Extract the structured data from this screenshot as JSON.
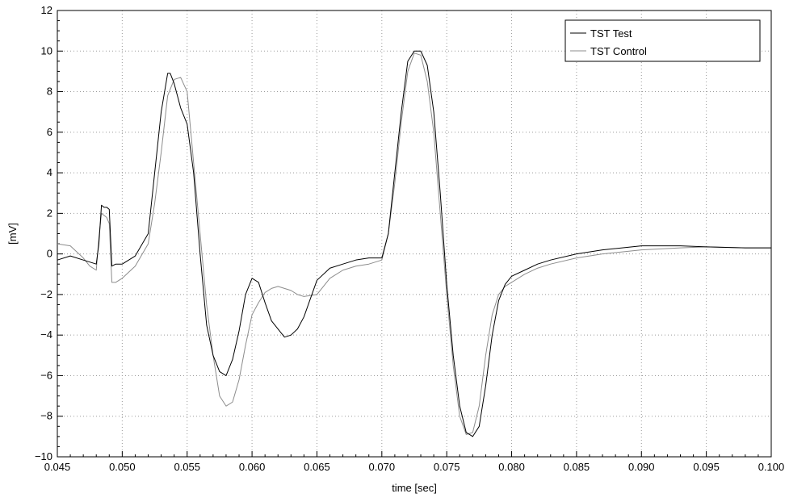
{
  "chart_data": {
    "type": "line",
    "title": "",
    "xlabel": "time [sec]",
    "ylabel": "[mV]",
    "xlim": [
      0.045,
      0.1
    ],
    "ylim": [
      -10,
      12
    ],
    "xticks": [
      0.045,
      0.05,
      0.055,
      0.06,
      0.065,
      0.07,
      0.075,
      0.08,
      0.085,
      0.09,
      0.095,
      0.1
    ],
    "xtick_labels": [
      "0.045",
      "0.050",
      "0.055",
      "0.060",
      "0.065",
      "0.070",
      "0.075",
      "0.080",
      "0.085",
      "0.090",
      "0.095",
      "0.100"
    ],
    "yticks": [
      -10,
      -8,
      -6,
      -4,
      -2,
      0,
      2,
      4,
      6,
      8,
      10,
      12
    ],
    "ytick_labels": [
      "−10",
      "−8",
      "−6",
      "−4",
      "−2",
      "0",
      "2",
      "4",
      "6",
      "8",
      "10",
      "12"
    ],
    "grid": true,
    "legend_position": "top-right",
    "series": [
      {
        "name": "TST Test",
        "color": "#000000",
        "x": [
          0.045,
          0.046,
          0.047,
          0.0475,
          0.048,
          0.0482,
          0.0484,
          0.0486,
          0.0488,
          0.049,
          0.0492,
          0.0495,
          0.05,
          0.051,
          0.052,
          0.0525,
          0.053,
          0.0535,
          0.0537,
          0.054,
          0.0545,
          0.055,
          0.0555,
          0.056,
          0.0565,
          0.057,
          0.0575,
          0.058,
          0.0585,
          0.059,
          0.0595,
          0.06,
          0.0605,
          0.061,
          0.0615,
          0.062,
          0.0625,
          0.063,
          0.0635,
          0.064,
          0.065,
          0.066,
          0.067,
          0.068,
          0.069,
          0.07,
          0.0705,
          0.071,
          0.0715,
          0.072,
          0.0725,
          0.073,
          0.0735,
          0.074,
          0.0745,
          0.075,
          0.0755,
          0.076,
          0.0765,
          0.077,
          0.0775,
          0.078,
          0.0785,
          0.079,
          0.0795,
          0.08,
          0.081,
          0.082,
          0.083,
          0.085,
          0.087,
          0.09,
          0.093,
          0.095,
          0.098,
          0.1
        ],
        "y": [
          -0.3,
          -0.1,
          -0.3,
          -0.4,
          -0.5,
          0.5,
          2.4,
          2.3,
          2.3,
          2.2,
          -0.6,
          -0.5,
          -0.5,
          -0.1,
          1.0,
          4.0,
          7.0,
          8.9,
          8.9,
          8.4,
          7.2,
          6.4,
          4.0,
          0.0,
          -3.5,
          -5.0,
          -5.8,
          -6.0,
          -5.2,
          -3.8,
          -2.0,
          -1.2,
          -1.4,
          -2.4,
          -3.3,
          -3.7,
          -4.1,
          -4.0,
          -3.7,
          -3.1,
          -1.3,
          -0.7,
          -0.5,
          -0.3,
          -0.2,
          -0.2,
          1.0,
          4.0,
          7.0,
          9.5,
          10.0,
          10.0,
          9.3,
          7.0,
          3.0,
          -1.5,
          -5.0,
          -7.5,
          -8.8,
          -9.0,
          -8.5,
          -6.5,
          -4.0,
          -2.3,
          -1.5,
          -1.1,
          -0.8,
          -0.5,
          -0.3,
          0.0,
          0.2,
          0.4,
          0.4,
          0.35,
          0.3,
          0.3
        ]
      },
      {
        "name": "TST Control",
        "color": "#8c8c8c",
        "x": [
          0.045,
          0.046,
          0.047,
          0.0475,
          0.048,
          0.0482,
          0.0484,
          0.0486,
          0.0488,
          0.049,
          0.0492,
          0.0495,
          0.05,
          0.051,
          0.052,
          0.0525,
          0.053,
          0.0535,
          0.054,
          0.0545,
          0.055,
          0.0555,
          0.056,
          0.0565,
          0.057,
          0.0575,
          0.058,
          0.0585,
          0.059,
          0.0595,
          0.06,
          0.0605,
          0.061,
          0.0615,
          0.062,
          0.0625,
          0.063,
          0.0635,
          0.064,
          0.065,
          0.066,
          0.067,
          0.068,
          0.069,
          0.07,
          0.0705,
          0.071,
          0.0715,
          0.072,
          0.0725,
          0.073,
          0.0735,
          0.074,
          0.0745,
          0.075,
          0.0755,
          0.076,
          0.0765,
          0.077,
          0.0775,
          0.078,
          0.0785,
          0.079,
          0.0795,
          0.08,
          0.081,
          0.082,
          0.083,
          0.085,
          0.087,
          0.09,
          0.093,
          0.095,
          0.098,
          0.1
        ],
        "y": [
          0.5,
          0.4,
          -0.2,
          -0.6,
          -0.8,
          0.8,
          2.0,
          1.9,
          1.8,
          1.5,
          -1.4,
          -1.4,
          -1.2,
          -0.6,
          0.5,
          2.5,
          5.0,
          7.8,
          8.6,
          8.7,
          8.0,
          4.5,
          1.0,
          -2.5,
          -5.0,
          -7.0,
          -7.5,
          -7.3,
          -6.2,
          -4.5,
          -3.0,
          -2.4,
          -1.9,
          -1.7,
          -1.6,
          -1.7,
          -1.8,
          -2.0,
          -2.1,
          -2.0,
          -1.2,
          -0.8,
          -0.6,
          -0.5,
          -0.3,
          1.0,
          3.5,
          6.5,
          9.0,
          9.9,
          9.8,
          8.5,
          6.0,
          2.0,
          -2.0,
          -5.5,
          -8.0,
          -8.9,
          -8.8,
          -7.5,
          -5.0,
          -3.0,
          -2.0,
          -1.6,
          -1.4,
          -1.0,
          -0.7,
          -0.5,
          -0.2,
          0.0,
          0.2,
          0.3,
          0.35,
          0.3,
          0.3
        ]
      }
    ]
  }
}
